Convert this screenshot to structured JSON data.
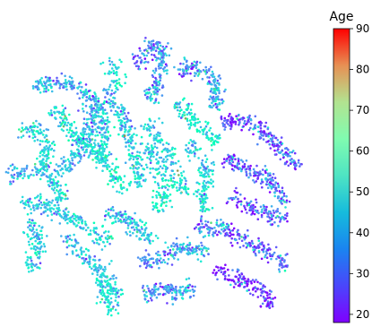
{
  "chart_data": {
    "type": "scatter",
    "title": "",
    "xlabel": "",
    "ylabel": "",
    "axes_visible": false,
    "grid": false,
    "point_count": 4000,
    "colorbar": {
      "label": "Age",
      "range": [
        18,
        90
      ],
      "ticks": [
        20,
        30,
        40,
        50,
        60,
        70,
        80,
        90
      ],
      "tick_labels": [
        "20",
        "30",
        "40",
        "50",
        "60",
        "70",
        "80",
        "90"
      ],
      "colormap": "rainbow",
      "placement": "right"
    },
    "colors": {
      "low": "#7f00ff",
      "mid_low": "#0096e6",
      "mid": "#80ffb4",
      "mid_high": "#ffb360",
      "high": "#ff0000"
    }
  }
}
